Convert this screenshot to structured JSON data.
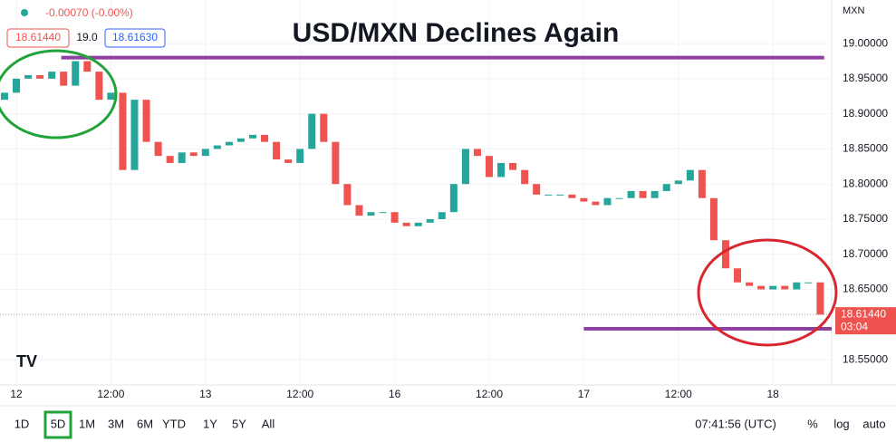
{
  "chart_data": {
    "type": "candlestick",
    "title": "USD/MXN Declines Again",
    "symbol": "MXN",
    "change": "-0.00070 (-0.00%)",
    "bid": "18.61440",
    "spread": "19.0",
    "ask": "18.61630",
    "x": [
      -1.5,
      0,
      1.5,
      3,
      4.5,
      6,
      7.5,
      9,
      10.5,
      12,
      13.5,
      15,
      16.5,
      18,
      19.5,
      21,
      22.5,
      24,
      25.5,
      27,
      28.5,
      30,
      31.5,
      33,
      34.5,
      36,
      37.5,
      39,
      40.5,
      42,
      43.5,
      45,
      46.5,
      48,
      49.5,
      51,
      52.5,
      54,
      55.5,
      57,
      58.5,
      60,
      61.5,
      63,
      64.5,
      66,
      67.5,
      69,
      70.5,
      72,
      73.5,
      75,
      76.5,
      78,
      79.5,
      81,
      82.5,
      84,
      85.5,
      87,
      88.5,
      90,
      91.5,
      93,
      94.5,
      96,
      97.5,
      99,
      100.5,
      102
    ],
    "open": [
      18.92,
      18.93,
      18.95,
      18.955,
      18.95,
      18.96,
      18.94,
      18.975,
      18.96,
      18.92,
      18.93,
      18.82,
      18.92,
      18.86,
      18.84,
      18.83,
      18.845,
      18.84,
      18.85,
      18.855,
      18.86,
      18.865,
      18.87,
      18.86,
      18.835,
      18.83,
      18.85,
      18.9,
      18.86,
      18.8,
      18.77,
      18.755,
      18.76,
      18.76,
      18.745,
      18.74,
      18.745,
      18.75,
      18.76,
      18.8,
      18.85,
      18.84,
      18.81,
      18.83,
      18.82,
      18.8,
      18.785,
      18.785,
      18.785,
      18.78,
      18.775,
      18.77,
      18.78,
      18.78,
      18.79,
      18.78,
      18.79,
      18.8,
      18.805,
      18.82,
      18.78,
      18.72,
      18.68,
      18.66,
      18.655,
      18.65,
      18.655,
      18.65,
      18.66,
      18.66
    ],
    "close": [
      18.93,
      18.95,
      18.955,
      18.95,
      18.96,
      18.94,
      18.975,
      18.96,
      18.92,
      18.93,
      18.82,
      18.92,
      18.86,
      18.84,
      18.83,
      18.845,
      18.84,
      18.85,
      18.855,
      18.86,
      18.865,
      18.87,
      18.86,
      18.835,
      18.83,
      18.85,
      18.9,
      18.86,
      18.8,
      18.77,
      18.755,
      18.76,
      18.76,
      18.745,
      18.74,
      18.745,
      18.75,
      18.76,
      18.8,
      18.85,
      18.84,
      18.81,
      18.83,
      18.82,
      18.8,
      18.785,
      18.785,
      18.785,
      18.78,
      18.775,
      18.77,
      18.78,
      18.78,
      18.79,
      18.78,
      18.79,
      18.8,
      18.805,
      18.82,
      18.78,
      18.72,
      18.68,
      18.66,
      18.655,
      18.65,
      18.655,
      18.65,
      18.66,
      18.66,
      18.614
    ],
    "up_color": "#26a69a",
    "down_color": "#ef5350",
    "xlim": [
      -2.07,
      103.45
    ],
    "ylim": [
      18.514,
      19.062
    ],
    "yticks": [
      {
        "value": 18.55,
        "label": "18.55000"
      },
      {
        "value": 18.65,
        "label": "18.65000"
      },
      {
        "value": 18.7,
        "label": "18.70000"
      },
      {
        "value": 18.75,
        "label": "18.75000"
      },
      {
        "value": 18.8,
        "label": "18.80000"
      },
      {
        "value": 18.85,
        "label": "18.85000"
      },
      {
        "value": 18.9,
        "label": "18.90000"
      },
      {
        "value": 18.95,
        "label": "18.95000"
      },
      {
        "value": 19.0,
        "label": "19.00000"
      }
    ],
    "xticks": [
      {
        "value": 0,
        "label": "12"
      },
      {
        "value": 12,
        "label": "12:00"
      },
      {
        "value": 24,
        "label": "13"
      },
      {
        "value": 36,
        "label": "12:00"
      },
      {
        "value": 48,
        "label": "16"
      },
      {
        "value": 60,
        "label": "12:00"
      },
      {
        "value": 72,
        "label": "17"
      },
      {
        "value": 84,
        "label": "12:00"
      },
      {
        "value": 96,
        "label": "18"
      }
    ],
    "levels": [
      {
        "value": 18.98,
        "x": [
          5.7,
          102.5
        ],
        "color": "#8e3fa0"
      },
      {
        "value": 18.594,
        "x": [
          72,
          103.45
        ],
        "color": "#8e3fa0"
      }
    ],
    "last_price": {
      "value": 18.6144,
      "label": "18.61440",
      "countdown": "03:04",
      "color": "#ef5350"
    },
    "timeframes": [
      "1D",
      "5D",
      "1M",
      "3M",
      "6M",
      "YTD",
      "1Y",
      "5Y",
      "All"
    ],
    "active_timeframe": 1,
    "clock": "07:41:56 (UTC)",
    "options": [
      "%",
      "log",
      "auto"
    ]
  }
}
